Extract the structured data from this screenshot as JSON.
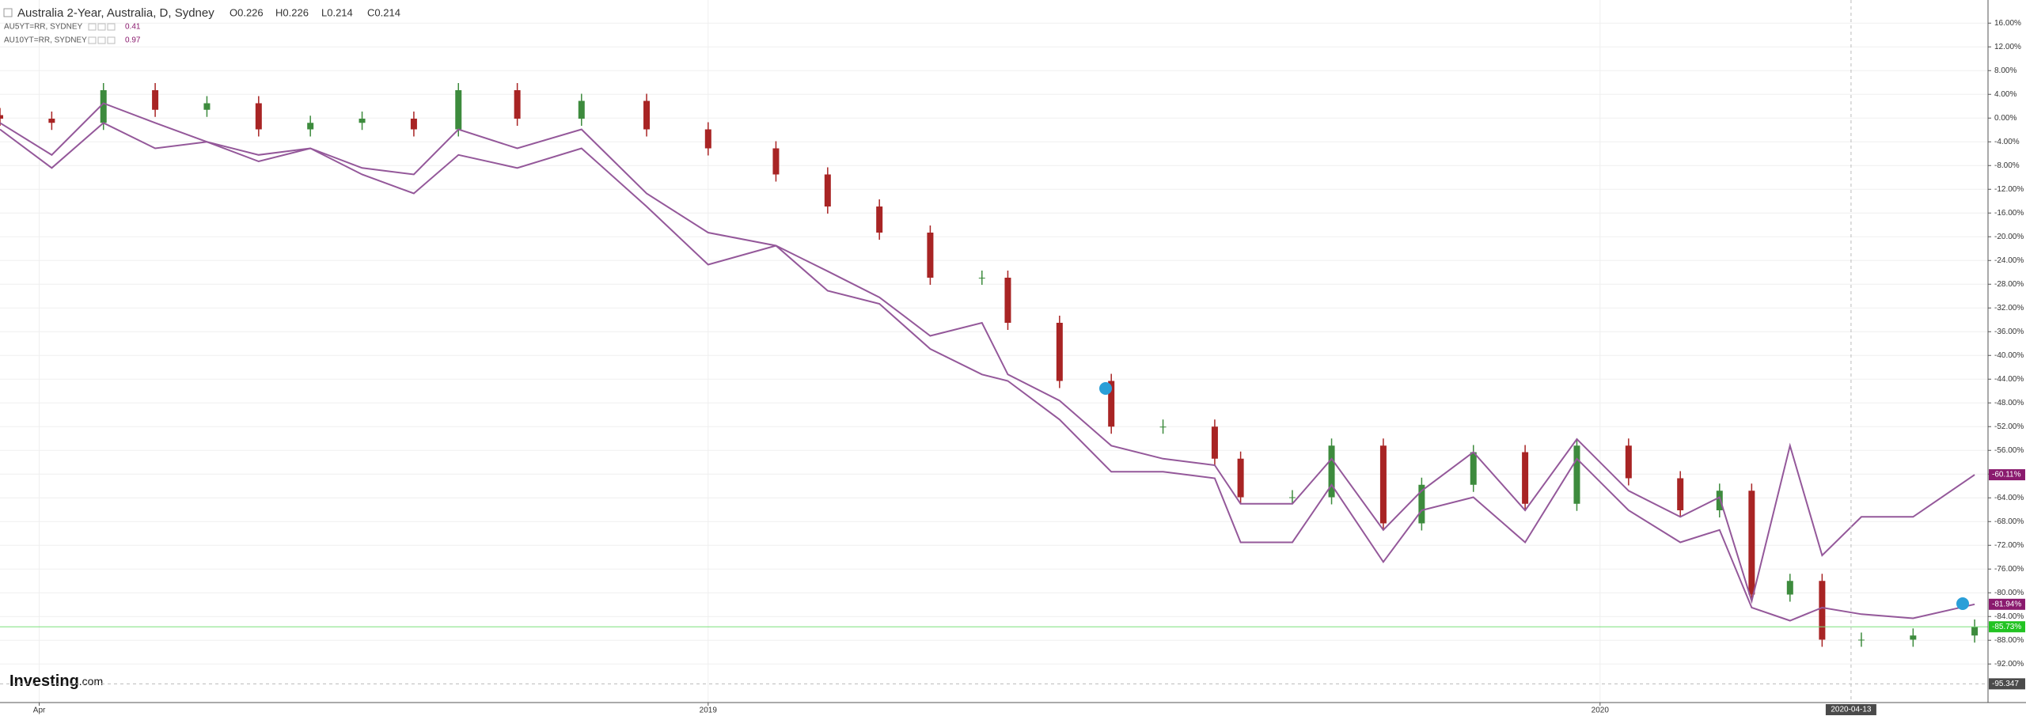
{
  "chart_data": {
    "type": "candlestick",
    "x": [
      2018.206,
      2018.264,
      2018.322,
      2018.38,
      2018.438,
      2018.496,
      2018.554,
      2018.612,
      2018.67,
      2018.72,
      2018.786,
      2018.858,
      2018.931,
      2019.0,
      2019.076,
      2019.134,
      2019.192,
      2019.249,
      2019.307,
      2019.336,
      2019.394,
      2019.452,
      2019.51,
      2019.568,
      2019.597,
      2019.655,
      2019.699,
      2019.757,
      2019.8,
      2019.858,
      2019.916,
      2019.974,
      2020.032,
      2020.09,
      2020.134,
      2020.17,
      2020.213,
      2020.249,
      2020.293,
      2020.351,
      2020.42
    ],
    "xlim": [
      2018.206,
      2020.435
    ],
    "xticks": [
      {
        "value": 2018.25,
        "label": "Apr"
      },
      2019,
      2020
    ],
    "ylim": [
      -98.5,
      19.9
    ],
    "yticks": [
      {
        "value": 16,
        "label": "16.00%"
      },
      {
        "value": 12,
        "label": "12.00%"
      },
      {
        "value": 8,
        "label": "8.00%"
      },
      {
        "value": 4,
        "label": "4.00%"
      },
      {
        "value": 0,
        "label": "0.00%"
      },
      {
        "value": -4,
        "label": "-4.00%"
      },
      {
        "value": -8,
        "label": "-8.00%"
      },
      {
        "value": -12,
        "label": "-12.00%"
      },
      {
        "value": -16,
        "label": "-16.00%"
      },
      {
        "value": -20,
        "label": "-20.00%"
      },
      {
        "value": -24,
        "label": "-24.00%"
      },
      {
        "value": -28,
        "label": "-28.00%"
      },
      {
        "value": -32,
        "label": "-32.00%"
      },
      {
        "value": -36,
        "label": "-36.00%"
      },
      {
        "value": -40,
        "label": "-40.00%"
      },
      {
        "value": -44,
        "label": "-44.00%"
      },
      {
        "value": -48,
        "label": "-48.00%"
      },
      {
        "value": -52,
        "label": "-52.00%"
      },
      {
        "value": -56,
        "label": "-56.00%"
      },
      {
        "value": -60,
        "label": "-60.00%"
      },
      {
        "value": -64,
        "label": "-64.00%"
      },
      {
        "value": -68,
        "label": "-68.00%"
      },
      {
        "value": -72,
        "label": "-72.00%"
      },
      {
        "value": -76,
        "label": "-76.00%"
      },
      {
        "value": -80,
        "label": "-80.00%"
      },
      {
        "value": -84,
        "label": "-84.00%"
      },
      {
        "value": -88,
        "label": "-88.00%"
      },
      {
        "value": -92,
        "label": "-92.00%"
      }
    ],
    "grid": true,
    "ohlc": [
      "O0.226",
      "H0.226",
      "L0.214",
      "C0.214"
    ],
    "series": [
      {
        "name": "Australia 2-Year, Australia, D, Sydney",
        "type": "candlestick",
        "up_color": "#3d8b3d",
        "down_color": "#a82424",
        "label_color": "#22c322",
        "last_label": "-85.73%",
        "open": [
          0.5,
          -0.1,
          -0.8,
          4.7,
          1.4,
          2.5,
          -1.9,
          -0.8,
          -0.1,
          -1.9,
          4.7,
          -0.1,
          2.9,
          -1.9,
          -5.1,
          -9.5,
          -14.9,
          -19.3,
          -26.9,
          -26.9,
          -34.5,
          -44.3,
          -52,
          -52,
          -57.4,
          -63.9,
          -63.9,
          -55.2,
          -68.3,
          -61.8,
          -56.3,
          -65,
          -55.2,
          -60.7,
          -66.1,
          -62.8,
          -80.3,
          -78,
          -87.9,
          -87.9,
          -87.2
        ],
        "high": [
          1.7,
          1.1,
          5.9,
          5.9,
          3.7,
          3.7,
          0.4,
          1.1,
          1.1,
          5.9,
          5.9,
          4.1,
          4.1,
          -0.7,
          -3.9,
          -8.3,
          -13.7,
          -18.1,
          -25.7,
          -25.7,
          -33.3,
          -43.1,
          -50.8,
          -50.8,
          -56.2,
          -62.7,
          -54,
          -54,
          -60.6,
          -55.1,
          -55.1,
          -54,
          -54,
          -59.5,
          -61.6,
          -61.6,
          -76.8,
          -76.8,
          -86.7,
          -86,
          -84.5
        ],
        "low": [
          -1.3,
          -2,
          -2,
          0.2,
          0.2,
          -3.1,
          -3.1,
          -2,
          -3.1,
          -3.1,
          -1.3,
          -1.3,
          -3.1,
          -6.3,
          -10.7,
          -16.1,
          -20.5,
          -28.1,
          -28.1,
          -35.7,
          -45.5,
          -53.2,
          -53.2,
          -58.6,
          -65.1,
          -65.1,
          -65.1,
          -69.5,
          -69.5,
          -63,
          -66.2,
          -66.2,
          -61.9,
          -67.3,
          -67.3,
          -81.5,
          -81.5,
          -89.1,
          -89.1,
          -89.1,
          -88.4
        ],
        "close": [
          -0.1,
          -0.8,
          4.7,
          1.4,
          2.5,
          -1.9,
          -0.8,
          -0.1,
          -1.9,
          4.7,
          -0.1,
          2.9,
          -1.9,
          -5.1,
          -9.5,
          -14.9,
          -19.3,
          -26.9,
          -26.9,
          -34.5,
          -44.3,
          -52,
          -52,
          -57.4,
          -63.9,
          -63.9,
          -55.2,
          -68.3,
          -61.8,
          -56.3,
          -65,
          -55.2,
          -60.7,
          -66.1,
          -62.8,
          -80.3,
          -78,
          -87.9,
          -87.9,
          -87.2,
          -85.73
        ]
      },
      {
        "name": "AU5YT=RR, SYDNEY",
        "type": "line",
        "color": "#94589a",
        "label_color": "#8a1a6e",
        "legend_value": "0.41",
        "last_label": "-60.11%",
        "values": [
          -0.8,
          -6.2,
          2.5,
          -0.8,
          -4.0,
          -6.2,
          -5.1,
          -8.4,
          -9.5,
          -1.9,
          -5.1,
          -1.9,
          -12.7,
          -19.3,
          -21.5,
          -25.8,
          -30.2,
          -36.7,
          -34.5,
          -43.2,
          -47.6,
          -55.2,
          -57.4,
          -58.5,
          -65,
          -65,
          -57.4,
          -69.4,
          -62.8,
          -56.3,
          -66.1,
          -54.1,
          -62.8,
          -67.2,
          -63.9,
          -81.4,
          -55.2,
          -73.7,
          -67.2,
          -67.2,
          -60.11
        ]
      },
      {
        "name": "AU10YT=RR, SYDNEY",
        "type": "line",
        "color": "#94589a",
        "label_color": "#8a1a6e",
        "legend_value": "0.97",
        "last_label": "-81.94%",
        "values": [
          -1.9,
          -8.4,
          -0.8,
          -5.1,
          -4.0,
          -7.3,
          -5.1,
          -9.5,
          -12.7,
          -6.2,
          -8.4,
          -5.1,
          -14.9,
          -24.7,
          -21.5,
          -29.1,
          -31.3,
          -38.9,
          -43.2,
          -44.3,
          -50.8,
          -59.6,
          -59.6,
          -60.7,
          -71.5,
          -71.5,
          -61.8,
          -74.8,
          -66.1,
          -63.9,
          -71.5,
          -57.4,
          -66.1,
          -71.5,
          -69.4,
          -82.5,
          -84.7,
          -82.5,
          -83.6,
          -84.3,
          -81.94
        ]
      }
    ],
    "crosshair": {
      "label": "2020-04-13",
      "value": -95.347
    },
    "brand": [
      "Investing",
      ".com"
    ]
  }
}
